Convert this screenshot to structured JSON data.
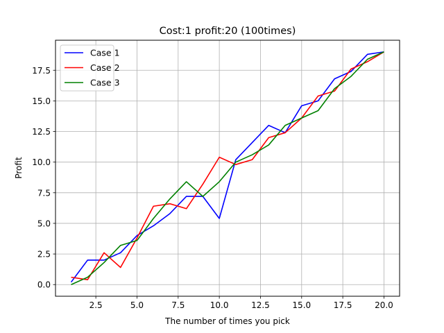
{
  "chart_data": {
    "type": "line",
    "title": "Cost:1 profit:20 (100times)",
    "xlabel": "The number of times you pick",
    "ylabel": "Profit",
    "xlim": [
      0.05,
      20.95
    ],
    "ylim": [
      -0.95,
      19.95
    ],
    "x_ticks": [
      "2.5",
      "5.0",
      "7.5",
      "10.0",
      "12.5",
      "15.0",
      "17.5",
      "20.0"
    ],
    "y_ticks": [
      "0.0",
      "2.5",
      "5.0",
      "7.5",
      "10.0",
      "12.5",
      "15.0",
      "17.5"
    ],
    "grid": true,
    "legend_position": "upper-left",
    "x": [
      1,
      2,
      3,
      4,
      5,
      6,
      7,
      8,
      9,
      10,
      11,
      12,
      13,
      14,
      15,
      16,
      17,
      18,
      19,
      20
    ],
    "series": [
      {
        "name": "Case 1",
        "color": "#0000ff",
        "values": [
          0.2,
          2.0,
          2.0,
          2.6,
          4.0,
          4.8,
          5.8,
          7.2,
          7.2,
          5.4,
          10.2,
          11.6,
          13.0,
          12.4,
          14.6,
          15.0,
          16.8,
          17.4,
          18.8,
          19.0
        ]
      },
      {
        "name": "Case 2",
        "color": "#ff0000",
        "values": [
          0.6,
          0.4,
          2.6,
          1.4,
          3.8,
          6.4,
          6.6,
          6.2,
          8.2,
          10.4,
          9.8,
          10.2,
          12.0,
          12.4,
          13.6,
          15.4,
          15.8,
          17.6,
          18.2,
          19.0
        ]
      },
      {
        "name": "Case 3",
        "color": "#008000",
        "values": [
          0.0,
          0.6,
          1.8,
          3.2,
          3.6,
          5.4,
          7.0,
          8.4,
          7.2,
          8.4,
          10.0,
          10.6,
          11.4,
          13.0,
          13.6,
          14.2,
          16.0,
          17.0,
          18.4,
          19.0
        ]
      }
    ]
  }
}
